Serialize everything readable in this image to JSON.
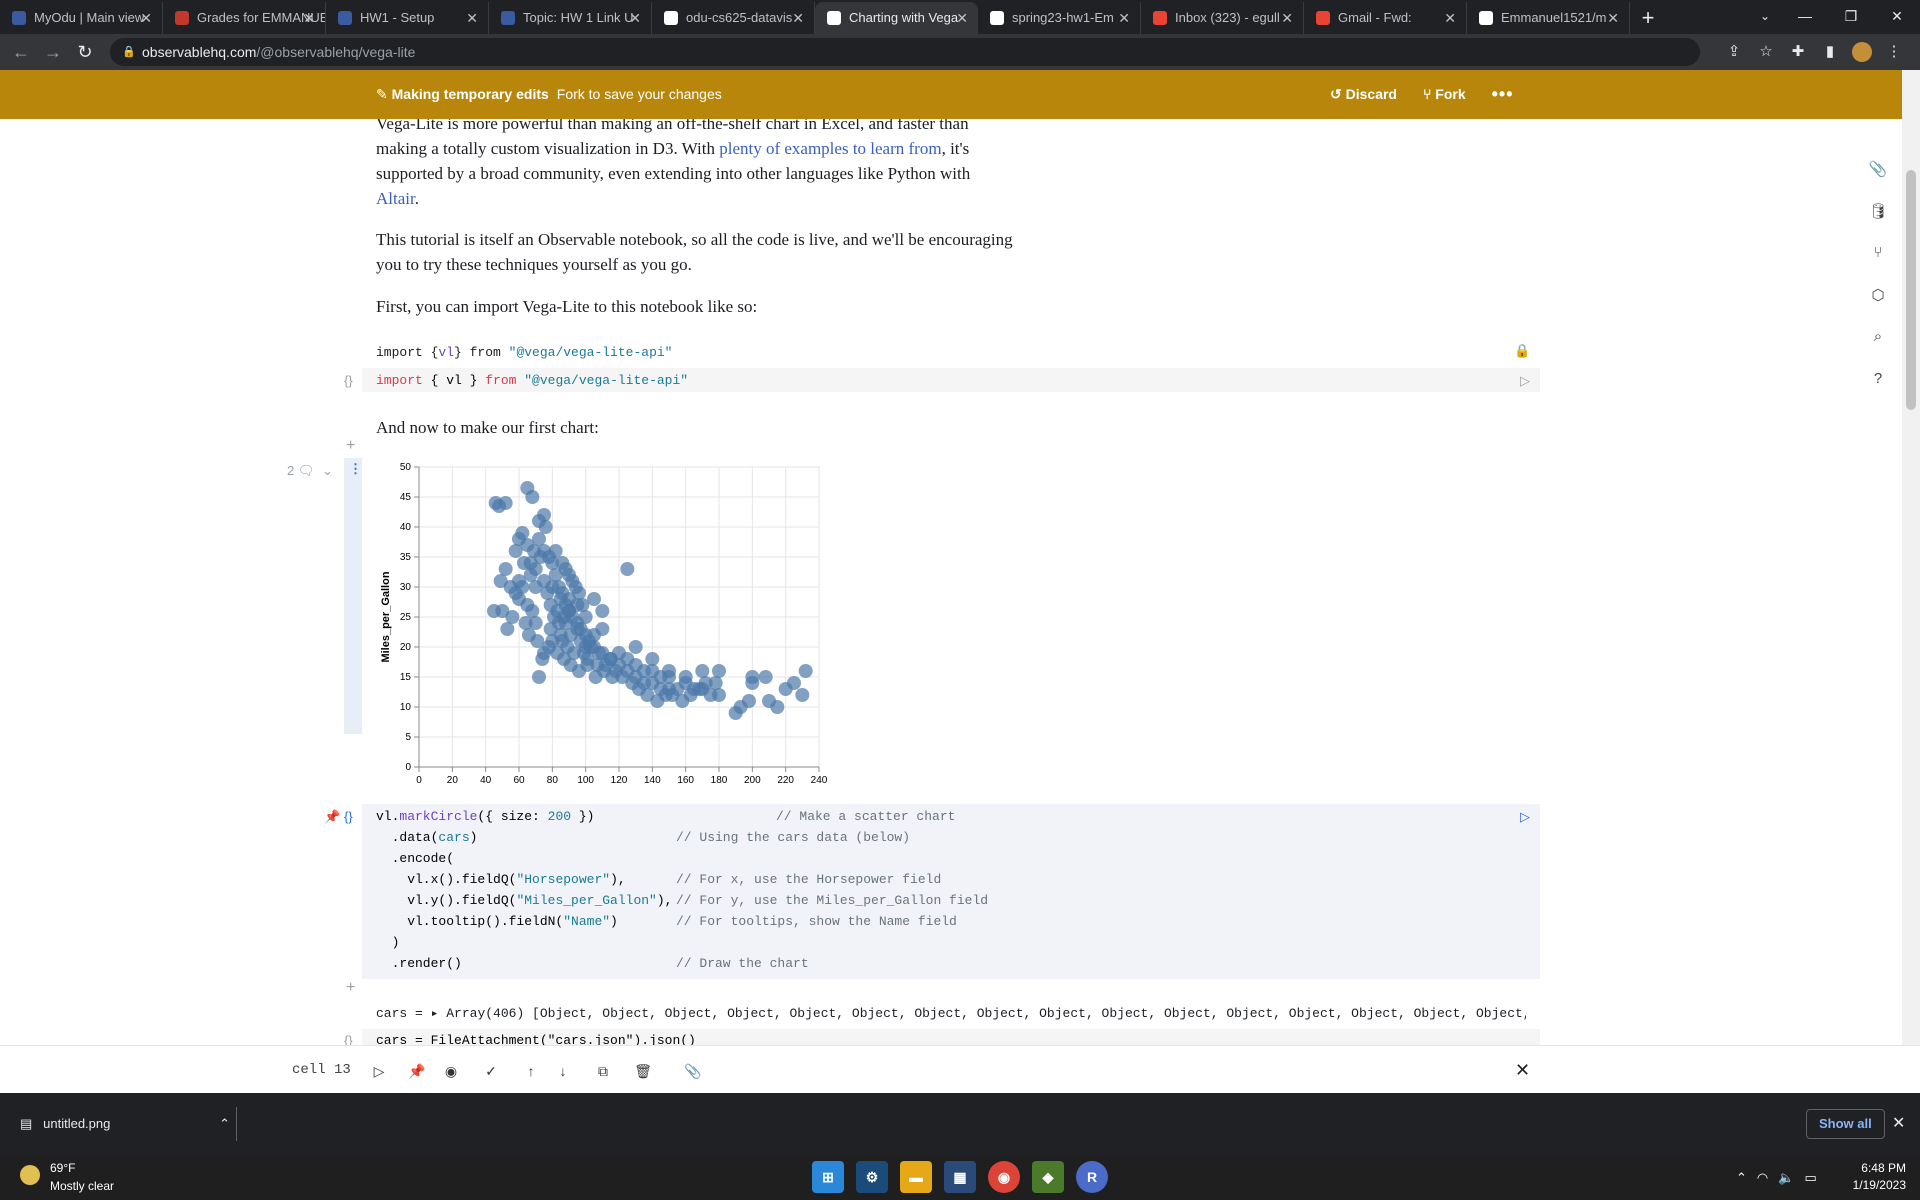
{
  "browser": {
    "tabs": [
      {
        "title": "MyOdu | Main view",
        "color": "#3a5ba0"
      },
      {
        "title": "Grades for EMMANUEL",
        "color": "#c0392b"
      },
      {
        "title": "HW1 - Setup",
        "color": "#3a5ba0"
      },
      {
        "title": "Topic: HW 1 Link U",
        "color": "#3a5ba0"
      },
      {
        "title": "odu-cs625-datavis",
        "color": "#ffffff"
      },
      {
        "title": "Charting with Vega",
        "color": "#ffffff",
        "active": true
      },
      {
        "title": "spring23-hw1-Em",
        "color": "#ffffff"
      },
      {
        "title": "Inbox (323) - egull",
        "color": "#ea4335"
      },
      {
        "title": "Gmail - Fwd:",
        "color": "#ea4335"
      },
      {
        "title": "Emmanuel1521/m",
        "color": "#ffffff"
      }
    ],
    "new_tab": "+",
    "url_host": "observablehq.com",
    "url_path": "/@observablehq/vega-lite"
  },
  "banner": {
    "title": "Making temporary edits",
    "subtitle": "Fork to save your changes",
    "discard": "Discard",
    "fork": "Fork",
    "more": "•••"
  },
  "prose": {
    "p1_a": "Vega-Lite is more powerful than making an off-the-shelf chart in Excel, and faster than making a totally custom visualization in D3. With ",
    "p1_link": "plenty of examples to learn from",
    "p1_b": ", it's supported by a broad community, even extending into other languages like Python with ",
    "p1_link2": "Altair",
    "p1_c": ".",
    "p2": "This tutorial is itself an Observable notebook, so all the code is live, and we'll be encouraging you to try these techniques yourself as you go.",
    "p3": "First, you can import Vega-Lite to this notebook like so:",
    "p4": "And now to make our first chart:"
  },
  "import_cell": {
    "output": {
      "a": "import {",
      "b": "vl",
      "c": "} from ",
      "d": "\"@vega/vega-lite-api\""
    },
    "source": {
      "a": "import",
      "b": " { vl } ",
      "c": "from",
      "d": " \"@vega/vega-lite-api\""
    }
  },
  "chart_cell": {
    "comment_count": "2",
    "code": [
      {
        "a": "vl.",
        "b": "markCircle",
        "c": "({ size: ",
        "d": "200",
        "e": " })",
        "cm": "// Make a scatter chart"
      },
      {
        "a": "  .data(",
        "b": "cars",
        "c": ")",
        "d": "",
        "e": "",
        "cm": "// Using the cars data (below)"
      },
      {
        "a": "  .encode(",
        "b": "",
        "c": "",
        "d": "",
        "e": "",
        "cm": ""
      },
      {
        "a": "    vl.x().fieldQ(",
        "b": "\"Horsepower\"",
        "c": "),",
        "d": "",
        "e": "",
        "cm": "// For x, use the Horsepower field"
      },
      {
        "a": "    vl.y().fieldQ(",
        "b": "\"Miles_per_Gallon\"",
        "c": "),",
        "d": "",
        "e": "",
        "cm": "// For y, use the Miles_per_Gallon field"
      },
      {
        "a": "    vl.tooltip().fieldN(",
        "b": "\"Name\"",
        "c": ")",
        "d": "",
        "e": "",
        "cm": "// For tooltips, show the Name field"
      },
      {
        "a": "  )",
        "b": "",
        "c": "",
        "d": "",
        "e": "",
        "cm": ""
      },
      {
        "a": "  .render()",
        "b": "",
        "c": "",
        "d": "",
        "e": "",
        "cm": "// Draw the chart"
      }
    ]
  },
  "cars_cell": {
    "output": "cars = ▸ Array(406) [Object, Object, Object, Object, Object, Object, Object, Object, Object, Object, Object, Object, Object, Object, Object, Object, O",
    "source": "cars = FileAttachment(\"cars.json\").json()"
  },
  "chart_data": {
    "type": "scatter",
    "xlabel": "Horsepower",
    "ylabel": "Miles_per_Gallon",
    "xlim": [
      0,
      240
    ],
    "ylim": [
      0,
      50
    ],
    "xticks": [
      0,
      20,
      40,
      60,
      80,
      100,
      120,
      140,
      160,
      180,
      200,
      220,
      240
    ],
    "yticks": [
      0,
      5,
      10,
      15,
      20,
      25,
      30,
      35,
      40,
      45,
      50
    ],
    "grid": true,
    "color": "#4c78a8",
    "points": [
      [
        46,
        44
      ],
      [
        48,
        43.5
      ],
      [
        52,
        44
      ],
      [
        65,
        46.5
      ],
      [
        68,
        45
      ],
      [
        75,
        42
      ],
      [
        49,
        31
      ],
      [
        52,
        33
      ],
      [
        58,
        36
      ],
      [
        60,
        38
      ],
      [
        62,
        39
      ],
      [
        65,
        37
      ],
      [
        67,
        34
      ],
      [
        70,
        33
      ],
      [
        72,
        38
      ],
      [
        75,
        36
      ],
      [
        78,
        35
      ],
      [
        80,
        34
      ],
      [
        82,
        32
      ],
      [
        84,
        30
      ],
      [
        86,
        29
      ],
      [
        88,
        27
      ],
      [
        90,
        26
      ],
      [
        92,
        25
      ],
      [
        95,
        24
      ],
      [
        97,
        23
      ],
      [
        100,
        22
      ],
      [
        102,
        21
      ],
      [
        105,
        20
      ],
      [
        110,
        19
      ],
      [
        115,
        18
      ],
      [
        120,
        17
      ],
      [
        125,
        16
      ],
      [
        130,
        15
      ],
      [
        135,
        14
      ],
      [
        140,
        14
      ],
      [
        145,
        13
      ],
      [
        150,
        13
      ],
      [
        155,
        13
      ],
      [
        160,
        14
      ],
      [
        165,
        13
      ],
      [
        170,
        13
      ],
      [
        175,
        12
      ],
      [
        180,
        12
      ],
      [
        190,
        9
      ],
      [
        193,
        10
      ],
      [
        198,
        11
      ],
      [
        200,
        14
      ],
      [
        210,
        11
      ],
      [
        215,
        10
      ],
      [
        220,
        13
      ],
      [
        225,
        14
      ],
      [
        230,
        12
      ],
      [
        232,
        16
      ],
      [
        208,
        15
      ],
      [
        200,
        15
      ],
      [
        180,
        16
      ],
      [
        170,
        16
      ],
      [
        160,
        15
      ],
      [
        150,
        16
      ],
      [
        140,
        18
      ],
      [
        130,
        20
      ],
      [
        125,
        33
      ],
      [
        110,
        26
      ],
      [
        105,
        28
      ],
      [
        100,
        25
      ],
      [
        95,
        27
      ],
      [
        90,
        28
      ],
      [
        88,
        24
      ],
      [
        85,
        22
      ],
      [
        80,
        21
      ],
      [
        78,
        20
      ],
      [
        75,
        19
      ],
      [
        72,
        15
      ],
      [
        70,
        24
      ],
      [
        68,
        26
      ],
      [
        65,
        27
      ],
      [
        62,
        30
      ],
      [
        60,
        31
      ],
      [
        58,
        29
      ],
      [
        55,
        30
      ],
      [
        50,
        26
      ],
      [
        45,
        26
      ],
      [
        53,
        23
      ],
      [
        70,
        30
      ],
      [
        75,
        31
      ],
      [
        80,
        30
      ],
      [
        85,
        28
      ],
      [
        90,
        26
      ],
      [
        95,
        23
      ],
      [
        100,
        20
      ],
      [
        105,
        22
      ],
      [
        110,
        23
      ],
      [
        115,
        18
      ],
      [
        120,
        19
      ],
      [
        125,
        18
      ],
      [
        130,
        17
      ],
      [
        135,
        16
      ],
      [
        140,
        16
      ],
      [
        145,
        15
      ],
      [
        150,
        15
      ],
      [
        88,
        33
      ],
      [
        92,
        31
      ],
      [
        96,
        29
      ],
      [
        98,
        27
      ],
      [
        82,
        36
      ],
      [
        76,
        40
      ],
      [
        72,
        41
      ],
      [
        86,
        34
      ],
      [
        90,
        32
      ],
      [
        94,
        30
      ],
      [
        83,
        26
      ],
      [
        87,
        25
      ],
      [
        91,
        22
      ],
      [
        97,
        21
      ],
      [
        103,
        20
      ],
      [
        108,
        19
      ],
      [
        112,
        17
      ],
      [
        118,
        16
      ],
      [
        122,
        15
      ],
      [
        128,
        14
      ],
      [
        132,
        13
      ],
      [
        137,
        12
      ],
      [
        143,
        11
      ],
      [
        148,
        12
      ],
      [
        152,
        12
      ],
      [
        158,
        11
      ],
      [
        163,
        12
      ],
      [
        168,
        13
      ],
      [
        172,
        14
      ],
      [
        178,
        14
      ],
      [
        67,
        32
      ],
      [
        63,
        34
      ],
      [
        69,
        36
      ],
      [
        73,
        35
      ],
      [
        77,
        29
      ],
      [
        79,
        27
      ],
      [
        81,
        25
      ],
      [
        84,
        24
      ],
      [
        86,
        21
      ],
      [
        89,
        20
      ],
      [
        93,
        19
      ],
      [
        99,
        19
      ],
      [
        101,
        18
      ],
      [
        107,
        17
      ],
      [
        60,
        28
      ],
      [
        56,
        25
      ],
      [
        64,
        24
      ],
      [
        66,
        22
      ],
      [
        71,
        21
      ],
      [
        74,
        18
      ],
      [
        79,
        23
      ],
      [
        83,
        19
      ],
      [
        87,
        18
      ],
      [
        91,
        17
      ],
      [
        96,
        16
      ],
      [
        101,
        17
      ],
      [
        106,
        15
      ],
      [
        111,
        16
      ],
      [
        116,
        15
      ]
    ]
  },
  "sidebar": [
    "paperclip-icon",
    "database-icon",
    "branch-icon",
    "cube-icon",
    "search-icon",
    "help-icon"
  ],
  "toolbar": {
    "cell_label": "cell 13",
    "close": "✕"
  },
  "downloads": {
    "file": "untitled.png",
    "show_all": "Show all",
    "close": "✕"
  },
  "taskbar": {
    "temp": "69°F",
    "weather": "Mostly clear",
    "time": "6:48 PM",
    "date": "1/19/2023"
  }
}
